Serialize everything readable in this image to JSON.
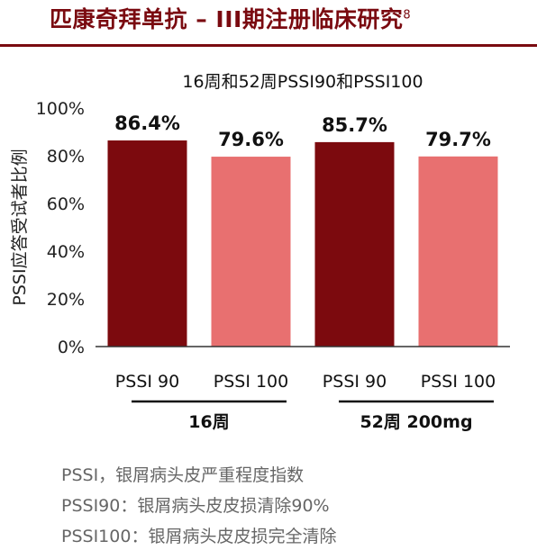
{
  "header": {
    "title": "匹康奇拜单抗 – III期注册临床研究",
    "title_ref": "8",
    "accent_color": "#7a0a10"
  },
  "chart_data": {
    "type": "bar",
    "title": "16周和52周PSSI90和PSSI100",
    "ylabel": "PSSI应答受试者比例",
    "xlabel": "",
    "ylim": [
      0,
      100
    ],
    "yticks": [
      "0%",
      "20%",
      "40%",
      "60%",
      "80%",
      "100%"
    ],
    "grid": false,
    "categories": [
      "PSSI 90",
      "PSSI 100",
      "PSSI 90",
      "PSSI 100"
    ],
    "values": [
      86.4,
      79.6,
      85.7,
      79.7
    ],
    "value_labels": [
      "86.4%",
      "79.6%",
      "85.7%",
      "79.7%"
    ],
    "bar_colors": [
      "#7c0a0e",
      "#e87070",
      "#7c0a0e",
      "#e87070"
    ],
    "groups": [
      {
        "label": "16周",
        "categories": [
          0,
          1
        ]
      },
      {
        "label": "52周 200mg",
        "categories": [
          2,
          3
        ]
      }
    ]
  },
  "notes": [
    "PSSI，银屑病头皮严重程度指数",
    "PSSI90：银屑病头皮皮损清除90%",
    "PSSI100：银屑病头皮皮损完全清除"
  ]
}
